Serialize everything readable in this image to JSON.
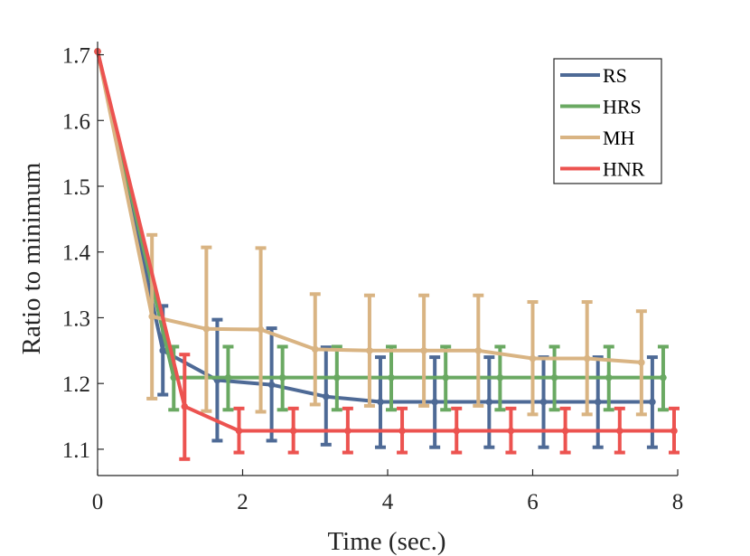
{
  "chart_data": {
    "type": "line",
    "title": "",
    "xlabel": "Time (sec.)",
    "ylabel": "Ratio to minimum",
    "xlim": [
      0,
      8
    ],
    "ylim": [
      1.06,
      1.72
    ],
    "xticks": [
      0,
      2,
      4,
      6,
      8
    ],
    "yticks": [
      1.1,
      1.2,
      1.3,
      1.4,
      1.5,
      1.6,
      1.7
    ],
    "xtick_labels": [
      "0",
      "2",
      "4",
      "6",
      "8"
    ],
    "ytick_labels": [
      "1.1",
      "1.2",
      "1.3",
      "1.4",
      "1.5",
      "1.6",
      "1.7"
    ],
    "grid": false,
    "legend_position": "top-right",
    "series": [
      {
        "name": "RS",
        "color": "#4e6a96",
        "x": [
          0,
          0.9,
          1.65,
          2.4,
          3.15,
          3.9,
          4.65,
          5.4,
          6.15,
          6.9,
          7.65
        ],
        "y": [
          1.705,
          1.25,
          1.205,
          1.198,
          1.18,
          1.172,
          1.172,
          1.172,
          1.172,
          1.172,
          1.172
        ],
        "err_low": [
          null,
          1.183,
          1.113,
          1.113,
          1.107,
          1.103,
          1.103,
          1.103,
          1.103,
          1.103,
          1.103
        ],
        "err_high": [
          null,
          1.318,
          1.297,
          1.284,
          1.255,
          1.24,
          1.24,
          1.24,
          1.24,
          1.24,
          1.24
        ]
      },
      {
        "name": "HRS",
        "color": "#6aa962",
        "x": [
          0,
          1.05,
          1.8,
          2.55,
          3.3,
          4.05,
          4.8,
          5.55,
          6.3,
          7.05,
          7.8
        ],
        "y": [
          1.705,
          1.209,
          1.209,
          1.209,
          1.209,
          1.209,
          1.209,
          1.209,
          1.209,
          1.209,
          1.209
        ],
        "err_low": [
          null,
          1.16,
          1.16,
          1.16,
          1.16,
          1.16,
          1.16,
          1.16,
          1.16,
          1.16,
          1.16
        ],
        "err_high": [
          null,
          1.256,
          1.256,
          1.256,
          1.256,
          1.256,
          1.256,
          1.256,
          1.256,
          1.256,
          1.256
        ]
      },
      {
        "name": "MH",
        "color": "#d9b483",
        "x": [
          0,
          0.75,
          1.5,
          2.25,
          3.0,
          3.75,
          4.5,
          5.25,
          6.0,
          6.75,
          7.5
        ],
        "y": [
          1.705,
          1.302,
          1.283,
          1.282,
          1.252,
          1.25,
          1.25,
          1.25,
          1.238,
          1.238,
          1.232
        ],
        "err_low": [
          null,
          1.177,
          1.158,
          1.157,
          1.168,
          1.166,
          1.166,
          1.166,
          1.153,
          1.153,
          1.153
        ],
        "err_high": [
          null,
          1.426,
          1.407,
          1.406,
          1.336,
          1.334,
          1.334,
          1.334,
          1.324,
          1.324,
          1.31
        ]
      },
      {
        "name": "HNR",
        "color": "#ec5350",
        "x": [
          0,
          1.2,
          1.95,
          2.7,
          3.45,
          4.2,
          4.95,
          5.7,
          6.45,
          7.2,
          7.95
        ],
        "y": [
          1.705,
          1.165,
          1.128,
          1.128,
          1.128,
          1.128,
          1.128,
          1.128,
          1.128,
          1.128,
          1.128
        ],
        "err_low": [
          null,
          1.085,
          1.095,
          1.095,
          1.095,
          1.095,
          1.095,
          1.095,
          1.095,
          1.095,
          1.095
        ],
        "err_high": [
          null,
          1.244,
          1.162,
          1.162,
          1.162,
          1.162,
          1.162,
          1.162,
          1.162,
          1.162,
          1.162
        ]
      }
    ]
  }
}
